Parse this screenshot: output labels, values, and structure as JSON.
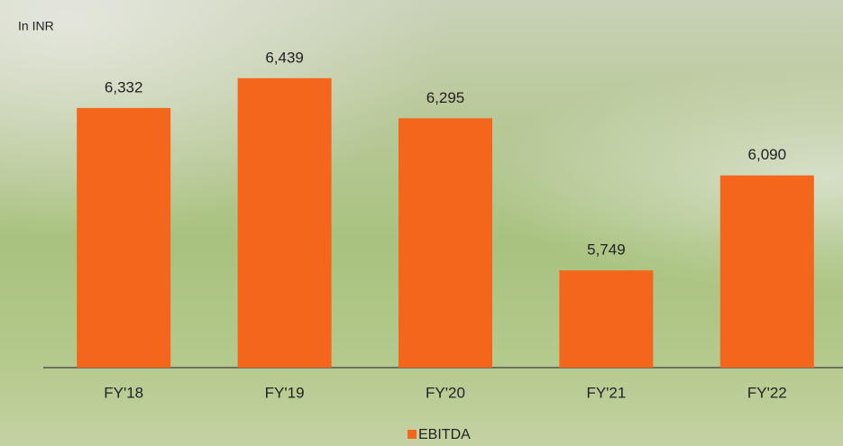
{
  "chart_data": {
    "type": "bar",
    "unit_label": "In INR",
    "categories": [
      "FY'18",
      "FY'19",
      "FY'20",
      "FY'21",
      "FY'22"
    ],
    "series": [
      {
        "name": "EBITDA",
        "color": "#f4661b",
        "values": [
          6332,
          6439,
          6295,
          5749,
          6090
        ],
        "value_labels": [
          "6,332",
          "6,439",
          "6,295",
          "5,749",
          "6,090"
        ]
      }
    ],
    "ylim": [
      5400,
      6600
    ]
  }
}
